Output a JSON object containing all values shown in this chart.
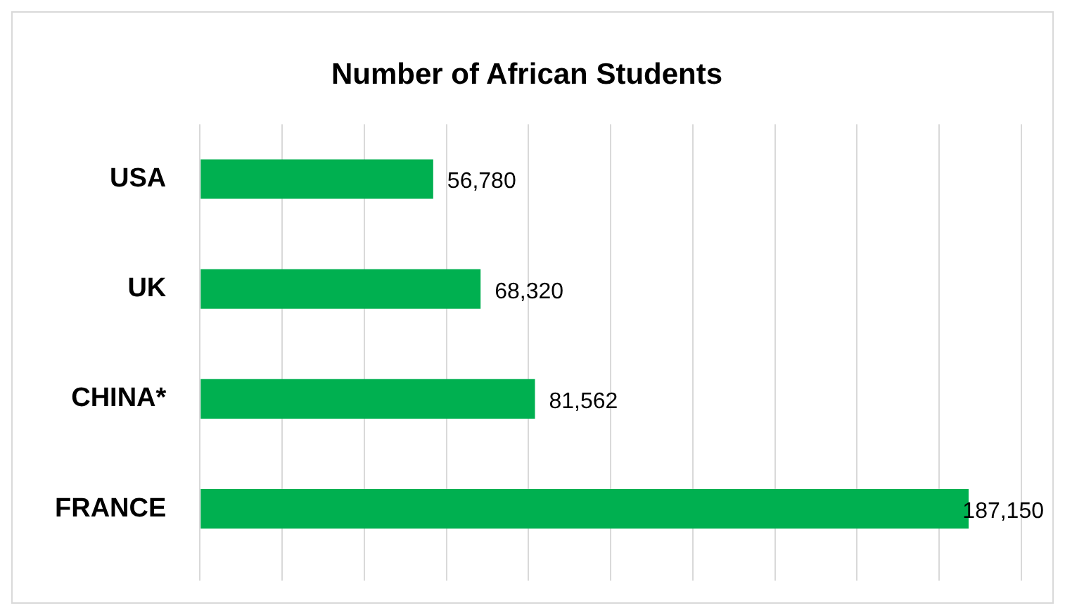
{
  "chart_data": {
    "type": "bar",
    "orientation": "horizontal",
    "title": "Number of African Students",
    "categories": [
      "USA",
      "UK",
      "CHINA*",
      "FRANCE"
    ],
    "values": [
      56780,
      68320,
      81562,
      187150
    ],
    "color": "#00b050",
    "value_labels": [
      "56,780",
      "68,320",
      "81,562",
      "187,150"
    ],
    "xlim": [
      0,
      200000
    ],
    "xticks": [
      {
        "value": 0,
        "label": null
      },
      {
        "value": 20000,
        "label": null
      },
      {
        "value": 40000,
        "label": null
      },
      {
        "value": 60000,
        "label": null
      },
      {
        "value": 80000,
        "label": null
      },
      {
        "value": 100000,
        "label": null
      },
      {
        "value": 120000,
        "label": null
      },
      {
        "value": 140000,
        "label": null
      },
      {
        "value": 160000,
        "label": null
      },
      {
        "value": 180000,
        "label": null
      },
      {
        "value": 200000,
        "label": null
      }
    ],
    "tick_labels": "y",
    "grid": "x",
    "legend": false
  }
}
